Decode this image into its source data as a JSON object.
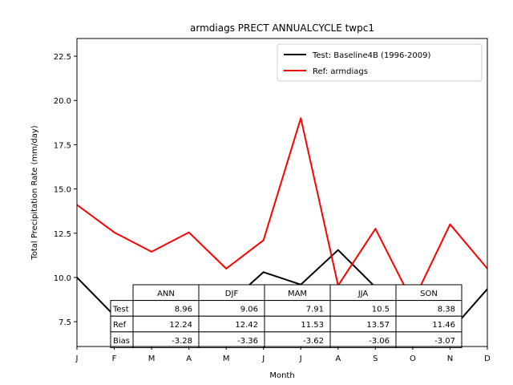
{
  "chart_data": {
    "type": "line",
    "title": "armdiags PRECT ANNUALCYCLE twpc1",
    "xlabel": "Month",
    "ylabel": "Total Precipitation Rate (mm/day)",
    "x_tick_labels": [
      "J",
      "F",
      "M",
      "A",
      "M",
      "J",
      "J",
      "A",
      "S",
      "O",
      "N",
      "D"
    ],
    "ylim": [
      6.1,
      23.5
    ],
    "yticks": [
      "7.5",
      "10.0",
      "12.5",
      "15.0",
      "17.5",
      "20.0",
      "22.5"
    ],
    "legend_position": "upper right",
    "grid": false,
    "series": [
      {
        "name": "Test: Baseline4B (1996-2009)",
        "color": "#000000",
        "values": [
          10.0,
          7.85,
          7.7,
          7.65,
          8.4,
          10.3,
          9.6,
          11.55,
          9.45,
          8.8,
          6.95,
          9.35
        ]
      },
      {
        "name": "Ref: armdiags",
        "color": "#ff0000",
        "values": [
          14.1,
          12.55,
          11.45,
          12.55,
          10.5,
          12.1,
          19.0,
          9.55,
          12.75,
          8.6,
          13.0,
          10.5
        ]
      }
    ],
    "table": {
      "col_headers": [
        "ANN",
        "DJF",
        "MAM",
        "JJA",
        "SON"
      ],
      "rows": [
        {
          "label": "Test",
          "values": [
            "8.96",
            "9.06",
            "7.91",
            "10.5",
            "8.38"
          ]
        },
        {
          "label": "Ref",
          "values": [
            "12.24",
            "12.42",
            "11.53",
            "13.57",
            "11.46"
          ]
        },
        {
          "label": "Bias",
          "values": [
            "-3.28",
            "-3.36",
            "-3.62",
            "-3.06",
            "-3.07"
          ]
        }
      ]
    }
  }
}
